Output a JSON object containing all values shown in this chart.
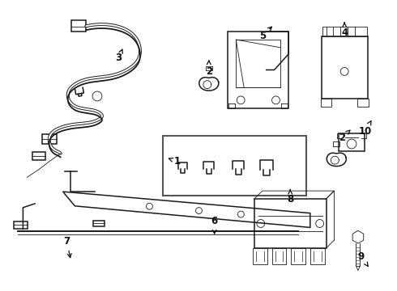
{
  "bg_color": "#ffffff",
  "line_color": "#1a1a1a",
  "label_color": "#111111",
  "figsize": [
    4.9,
    3.6
  ],
  "dpi": 100,
  "lw_main": 1.1,
  "lw_thin": 0.6,
  "lw_wire": 1.4
}
